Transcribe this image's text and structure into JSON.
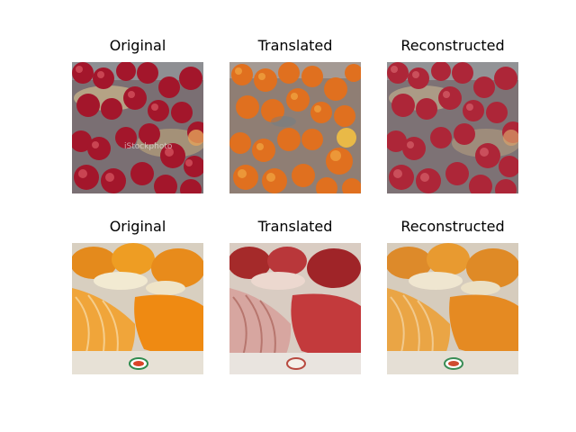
{
  "grid": {
    "rows": [
      {
        "panels": [
          {
            "title": "Original",
            "subject": "red-apples",
            "watermark": "iStockphoto"
          },
          {
            "title": "Translated",
            "subject": "orange-fruits"
          },
          {
            "title": "Reconstructed",
            "subject": "red-apples"
          }
        ]
      },
      {
        "panels": [
          {
            "title": "Original",
            "subject": "orange-segments"
          },
          {
            "title": "Translated",
            "subject": "red-fruit-segments"
          },
          {
            "title": "Reconstructed",
            "subject": "orange-segments"
          }
        ]
      }
    ]
  }
}
